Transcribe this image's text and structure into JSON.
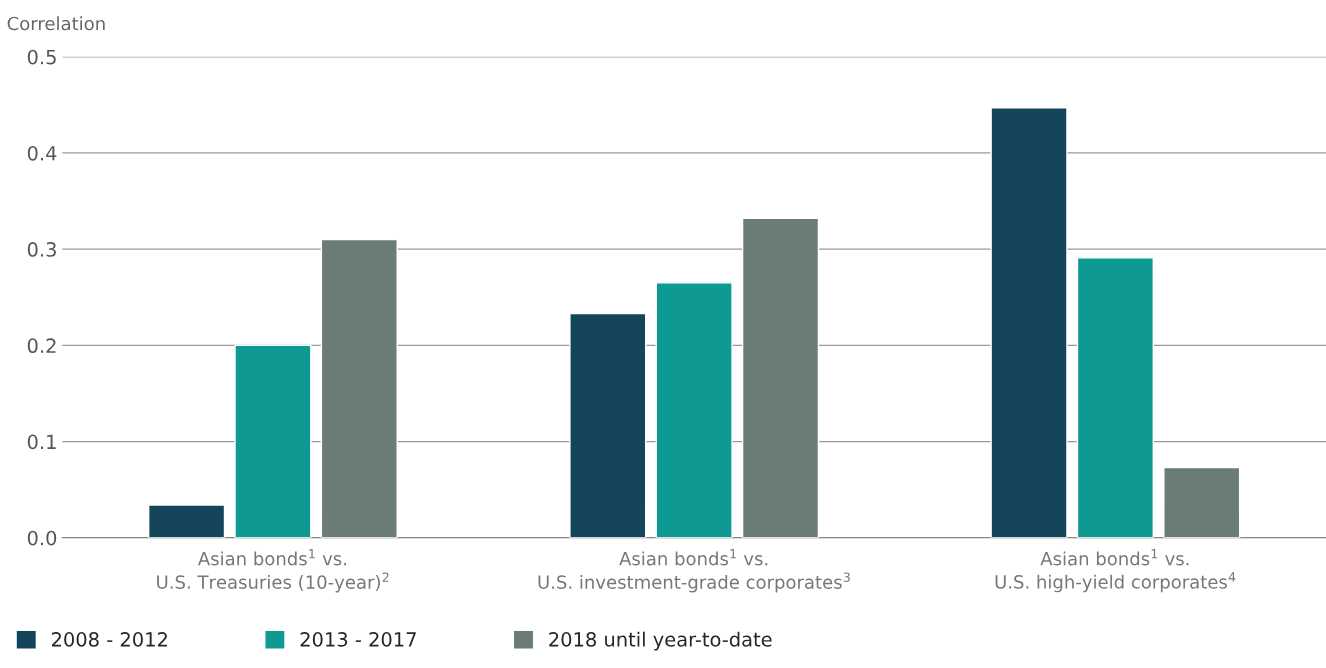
{
  "chart_data": {
    "type": "bar",
    "ylabel": "Correlation",
    "categories": [
      "Asian bonds$^{1}$ vs.\nU.S. Treasuries (10-year)$^{2}$",
      "Asian bonds$^{1}$ vs.\nU.S. investment-grade corporates$^{3}$",
      "Asian bonds$^{1}$ vs.\nU.S. high-yield corporates$^{4}$"
    ],
    "series": [
      {
        "name": "2008 - 2012",
        "color": "#15455a",
        "values": [
          0.034,
          0.233,
          0.447
        ]
      },
      {
        "name": "2013 - 2017",
        "color": "#0e9a93",
        "values": [
          0.2,
          0.265,
          0.291
        ]
      },
      {
        "name": "2018 until year-to-date",
        "color": "#6b7b78",
        "values": [
          0.31,
          0.332,
          0.073
        ]
      }
    ],
    "ylim": [
      0,
      0.5
    ],
    "yticks": [
      {
        "value": 0,
        "label": "0.0"
      },
      0.1,
      0.2,
      0.3,
      0.4,
      0.5
    ],
    "grid": "y",
    "legend": "bottom left"
  }
}
